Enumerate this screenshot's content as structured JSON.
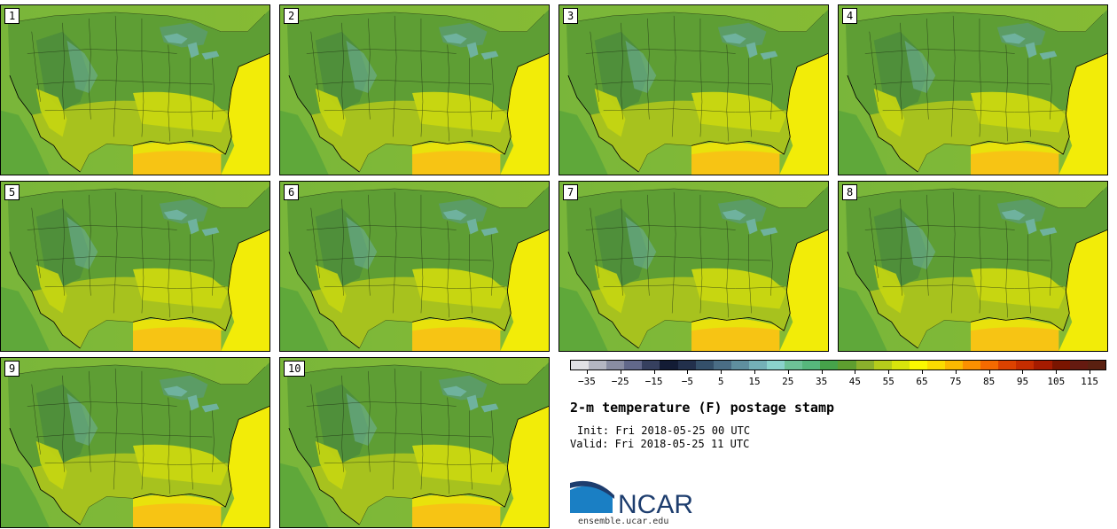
{
  "panels": [
    {
      "label": "1"
    },
    {
      "label": "2"
    },
    {
      "label": "3"
    },
    {
      "label": "4"
    },
    {
      "label": "5"
    },
    {
      "label": "6"
    },
    {
      "label": "7"
    },
    {
      "label": "8"
    },
    {
      "label": "9"
    },
    {
      "label": "10"
    }
  ],
  "colorbar": {
    "tick_labels": [
      "−35",
      "−25",
      "−15",
      "−5",
      "5",
      "15",
      "25",
      "35",
      "45",
      "55",
      "65",
      "75",
      "85",
      "95",
      "105",
      "115"
    ],
    "min": -40,
    "max": 120,
    "step": 5,
    "colors": [
      "#e1e1e5",
      "#b4b6c2",
      "#898da3",
      "#62688a",
      "#36405f",
      "#131c35",
      "#22304c",
      "#34506a",
      "#4a6d85",
      "#5f8f9f",
      "#74b0b7",
      "#8ad2cc",
      "#6dc297",
      "#56b77c",
      "#46a34a",
      "#5e9e2f",
      "#8bb02c",
      "#b5cc1b",
      "#d8e40c",
      "#fbf900",
      "#fbdc00",
      "#fbb900",
      "#fb9000",
      "#f46a00",
      "#dc4200",
      "#c52d00",
      "#a51b00",
      "#7a1500",
      "#651a10",
      "#5a2010"
    ]
  },
  "header": {
    "title": "2-m temperature (F) postage stamp",
    "init": "Init: Fri 2018-05-25 00 UTC",
    "valid": "Valid: Fri 2018-05-25 11 UTC"
  },
  "branding": {
    "logo_text": "NCAR",
    "url": "ensemble.ucar.edu"
  }
}
